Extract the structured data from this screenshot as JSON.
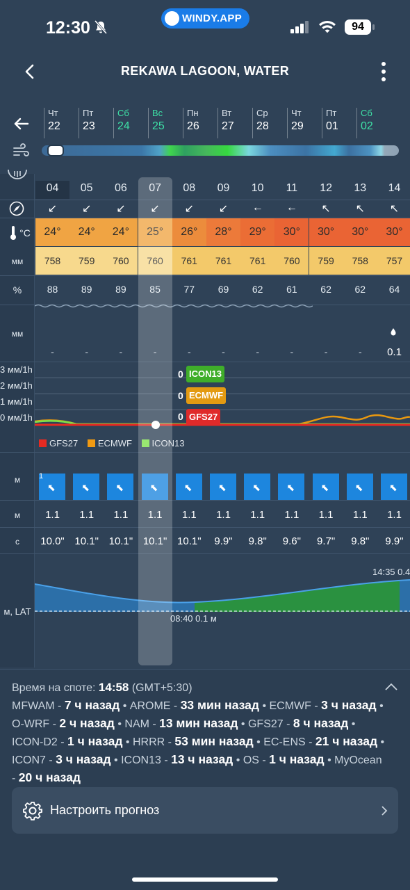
{
  "status": {
    "time": "12:30",
    "battery": "94",
    "brand": "WINDY.APP"
  },
  "header": {
    "title": "REKAWA LAGOON, WATER"
  },
  "days": [
    {
      "name": "Чт",
      "date": "22",
      "weekend": false
    },
    {
      "name": "Пт",
      "date": "23",
      "weekend": false
    },
    {
      "name": "Сб",
      "date": "24",
      "weekend": true
    },
    {
      "name": "Вс",
      "date": "25",
      "weekend": true
    },
    {
      "name": "Пн",
      "date": "26",
      "weekend": false
    },
    {
      "name": "Вт",
      "date": "27",
      "weekend": false
    },
    {
      "name": "Ср",
      "date": "28",
      "weekend": false
    },
    {
      "name": "Чт",
      "date": "29",
      "weekend": false
    },
    {
      "name": "Пт",
      "date": "01",
      "weekend": false
    },
    {
      "name": "Сб",
      "date": "02",
      "weekend": true
    }
  ],
  "rows": {
    "temp_label": "°C",
    "press_label": "мм",
    "hum_label": "%",
    "precip_label": "мм",
    "wave_height_label": "м",
    "wave_label2": "м",
    "period_label": "с",
    "tide_label": "м, LAT"
  },
  "hours": [
    "04",
    "05",
    "06",
    "07",
    "08",
    "09",
    "10",
    "11",
    "12",
    "13",
    "14"
  ],
  "wind_dir_arrows": [
    "↙",
    "↙",
    "↙",
    "↙",
    "↙",
    "↙",
    "←",
    "←",
    "↖",
    "↖",
    "↖"
  ],
  "temps": [
    "24°",
    "24°",
    "24°",
    "25°",
    "26°",
    "28°",
    "29°",
    "30°",
    "30°",
    "30°",
    "30°"
  ],
  "temp_colors": [
    "#f0a443",
    "#f0a443",
    "#f0a443",
    "#f0a443",
    "#ec8c3c",
    "#ec7a3a",
    "#eb6d35",
    "#ea6434",
    "#ea6434",
    "#ea6434",
    "#ea6434"
  ],
  "pressures": [
    "758",
    "759",
    "760",
    "760",
    "761",
    "761",
    "761",
    "760",
    "759",
    "758",
    "757"
  ],
  "humidity": [
    "88",
    "89",
    "89",
    "85",
    "77",
    "69",
    "62",
    "61",
    "62",
    "62",
    "64"
  ],
  "precip": [
    "-",
    "-",
    "-",
    "-",
    "-",
    "-",
    "-",
    "-",
    "-",
    "-",
    "0.1"
  ],
  "rain_chart": {
    "y_labels": [
      "3 мм/1h",
      "2 мм/1h",
      "1 мм/1h",
      "0 мм/1h"
    ],
    "models": [
      {
        "name": "ICON13",
        "value": "0",
        "color": "#3fae2a"
      },
      {
        "name": "ECMWF",
        "value": "0",
        "color": "#e39a12"
      },
      {
        "name": "GFS27",
        "value": "0",
        "color": "#e02a2a"
      }
    ],
    "legend": [
      {
        "name": "GFS27",
        "color": "#e52a22"
      },
      {
        "name": "ECMWF",
        "color": "#f09a12"
      },
      {
        "name": "ICON13",
        "color": "#7de04a"
      }
    ]
  },
  "wave_height_first": "1",
  "wave_heights": [
    "1.1",
    "1.1",
    "1.1",
    "1.1",
    "1.1",
    "1.1",
    "1.1",
    "1.1",
    "1.1",
    "1.1",
    "1.1"
  ],
  "wave_periods": [
    "10.0\"",
    "10.1\"",
    "10.1\"",
    "10.1\"",
    "10.1\"",
    "9.9\"",
    "9.8\"",
    "9.6\"",
    "9.7\"",
    "9.8\"",
    "9.9\""
  ],
  "tide": {
    "low_label": "08:40 0.1 м",
    "high_label": "14:35 0.4"
  },
  "footer": {
    "time_prefix": "Время на споте: ",
    "time_value": "14:58",
    "timezone": " (GMT+5:30)",
    "models": [
      {
        "name": "MFWAM",
        "age": "7 ч назад"
      },
      {
        "name": "AROME",
        "age": "33 мин назад"
      },
      {
        "name": "ECMWF",
        "age": "3 ч назад"
      },
      {
        "name": "O-WRF",
        "age": "2 ч назад"
      },
      {
        "name": "NAM",
        "age": "13 мин назад"
      },
      {
        "name": "GFS27",
        "age": "8 ч назад"
      },
      {
        "name": "ICON-D2",
        "age": "1 ч назад"
      },
      {
        "name": "HRRR",
        "age": "53 мин назад"
      },
      {
        "name": "EC-ENS",
        "age": "21 ч назад"
      },
      {
        "name": "ICON7",
        "age": "3 ч назад"
      },
      {
        "name": "ICON13",
        "age": "13 ч назад"
      },
      {
        "name": "OS",
        "age": "1 ч назад"
      },
      {
        "name": "MyOcean",
        "age": "20 ч назад"
      }
    ],
    "configure_label": "Настроить прогноз"
  }
}
